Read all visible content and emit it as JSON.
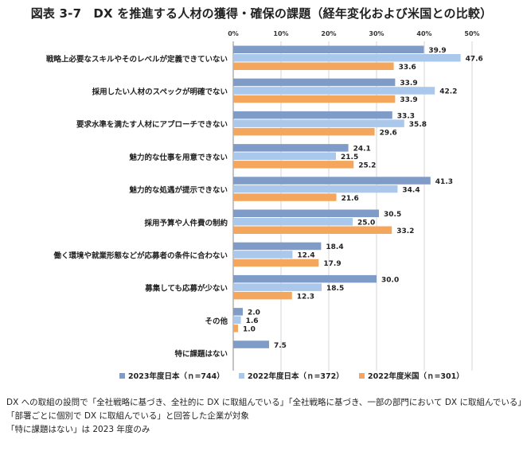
{
  "chart_data": {
    "type": "bar",
    "orientation": "horizontal",
    "title": "図表 3-7　DX を推進する人材の獲得・確保の課題（経年変化および米国との比較）",
    "xlim": [
      0,
      50
    ],
    "x_ticks": [
      "0%",
      "10%",
      "20%",
      "30%",
      "40%",
      "50%"
    ],
    "x_tick_values": [
      0,
      10,
      20,
      30,
      40,
      50
    ],
    "grid": true,
    "legend_position": "bottom",
    "categories": [
      "戦略上必要なスキルやそのレベルが定義できていない",
      "採用したい人材のスペックが明確でない",
      "要求水準を満たす人材にアプローチできない",
      "魅力的な仕事を用意できない",
      "魅力的な処遇が提示できない",
      "採用予算や人件費の制約",
      "働く環境や就業形態などが応募者の条件に合わない",
      "募集しても応募が少ない",
      "その他",
      "特に課題はない"
    ],
    "series": [
      {
        "name": "2023年度日本（ｎ=744）",
        "color": "#7f9cc8",
        "values": [
          39.9,
          33.9,
          33.3,
          24.1,
          41.3,
          30.5,
          18.4,
          30.0,
          2.0,
          7.5
        ],
        "labels": [
          "39.9",
          "33.9",
          "33.3",
          "24.1",
          "41.3",
          "30.5",
          "18.4",
          "30.0",
          "2.0",
          "7.5"
        ]
      },
      {
        "name": "2022年度日本（ｎ=372）",
        "color": "#a9c8ec",
        "values": [
          47.6,
          42.2,
          35.8,
          21.5,
          34.4,
          25.0,
          12.4,
          18.5,
          1.6,
          null
        ],
        "labels": [
          "47.6",
          "42.2",
          "35.8",
          "21.5",
          "34.4",
          "25.0",
          "12.4",
          "18.5",
          "1.6",
          ""
        ]
      },
      {
        "name": "2022年度米国（ｎ=301）",
        "color": "#f4a75c",
        "values": [
          33.6,
          33.9,
          29.6,
          25.2,
          21.6,
          33.2,
          17.9,
          12.3,
          1.0,
          null
        ],
        "labels": [
          "33.6",
          "33.9",
          "29.6",
          "25.2",
          "21.6",
          "33.2",
          "17.9",
          "12.3",
          "1.0",
          ""
        ]
      }
    ]
  },
  "notes": [
    "DX への取組の設問で「全社戦略に基づき、全社的に DX に取組んでいる」「全社戦略に基づき、一部の部門において DX に取組んでいる」",
    "「部署ごとに個別で DX に取組んでいる」と回答した企業が対象",
    "「特に課題はない」は 2023 年度のみ"
  ]
}
